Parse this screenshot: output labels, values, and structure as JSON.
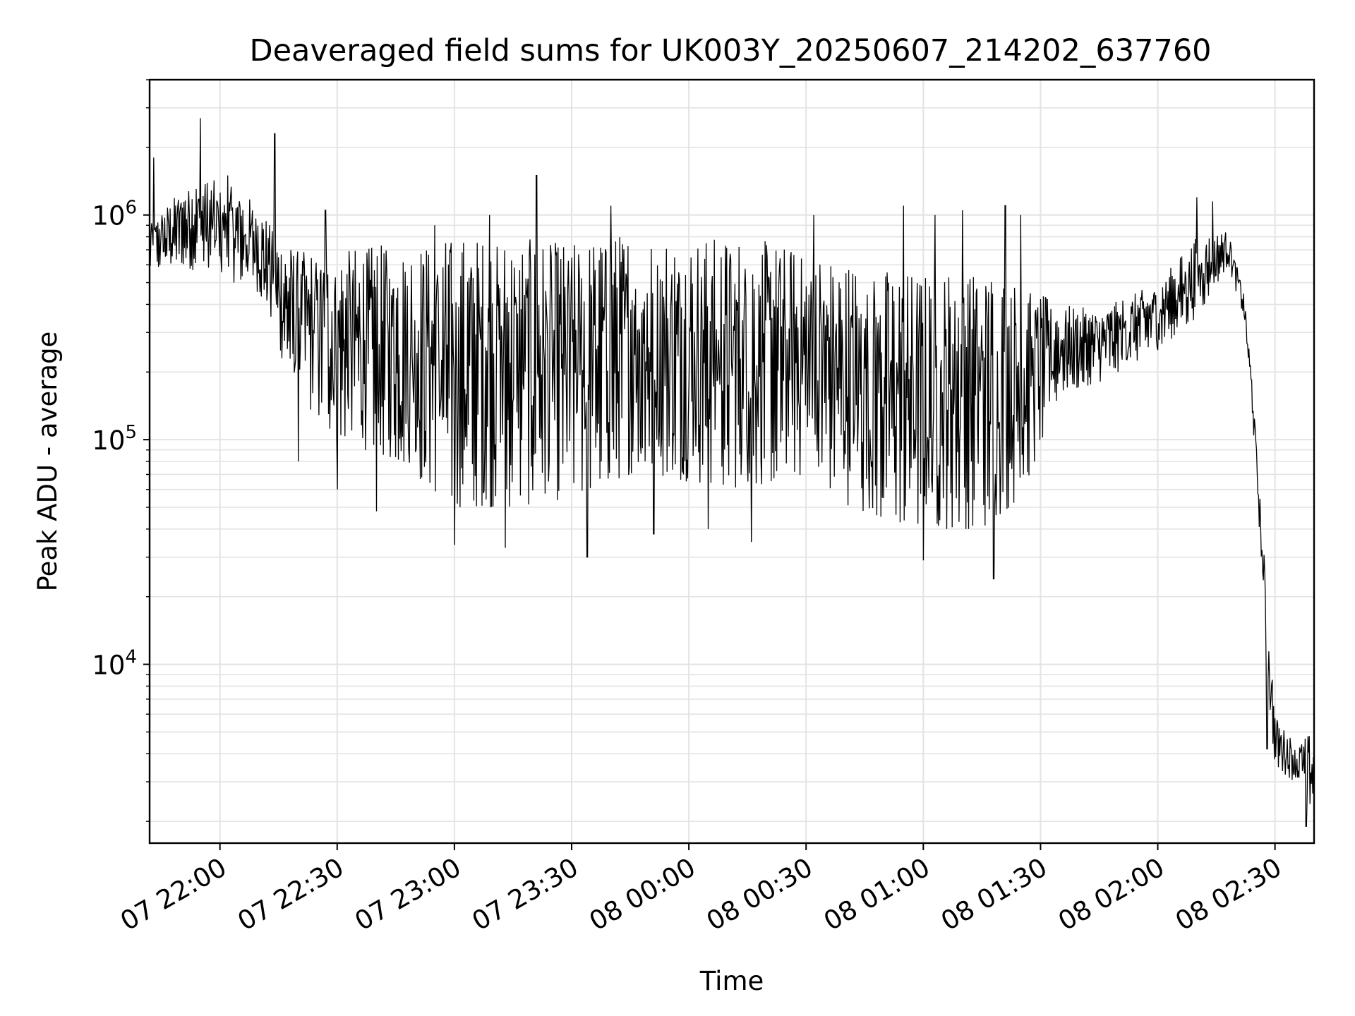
{
  "chart_data": {
    "type": "line",
    "title": "Deaveraged field sums for UK003Y_20250607_214202_637760",
    "xlabel": "Time",
    "ylabel": "Peak ADU - average",
    "yscale": "log",
    "grid": true,
    "line_color": "#000000",
    "grid_color": "#e3e3e3",
    "xlim": [
      "2025-06-07 21:42",
      "2025-06-08 02:40"
    ],
    "ylim": [
      1600,
      4000000
    ],
    "x_ticks": [
      {
        "value": "2025-06-07 22:00",
        "label": "07 22:00"
      },
      {
        "value": "2025-06-07 22:30",
        "label": "07 22:30"
      },
      {
        "value": "2025-06-07 23:00",
        "label": "07 23:00"
      },
      {
        "value": "2025-06-07 23:30",
        "label": "07 23:30"
      },
      {
        "value": "2025-06-08 00:00",
        "label": "08 00:00"
      },
      {
        "value": "2025-06-08 00:30",
        "label": "08 00:30"
      },
      {
        "value": "2025-06-08 01:00",
        "label": "08 01:00"
      },
      {
        "value": "2025-06-08 01:30",
        "label": "08 01:30"
      },
      {
        "value": "2025-06-08 02:00",
        "label": "08 02:00"
      },
      {
        "value": "2025-06-08 02:30",
        "label": "08 02:30"
      }
    ],
    "y_ticks": [
      {
        "value": 10000,
        "base": "10",
        "exp": "4"
      },
      {
        "value": 100000,
        "base": "10",
        "exp": "5"
      },
      {
        "value": 1000000,
        "base": "10",
        "exp": "6"
      }
    ],
    "series": [
      {
        "envelope_points": [
          {
            "x": "2025-06-07 21:42",
            "low": 550000,
            "high": 900000
          },
          {
            "x": "2025-06-07 21:50",
            "low": 600000,
            "high": 1300000
          },
          {
            "x": "2025-06-07 21:55",
            "low": 550000,
            "high": 1500000
          },
          {
            "x": "2025-06-07 22:00",
            "low": 500000,
            "high": 1400000
          },
          {
            "x": "2025-06-07 22:05",
            "low": 500000,
            "high": 1300000
          },
          {
            "x": "2025-06-07 22:10",
            "low": 450000,
            "high": 1100000
          },
          {
            "x": "2025-06-07 22:15",
            "low": 250000,
            "high": 800000
          },
          {
            "x": "2025-06-07 22:20",
            "low": 150000,
            "high": 700000
          },
          {
            "x": "2025-06-07 22:30",
            "low": 100000,
            "high": 700000
          },
          {
            "x": "2025-06-07 22:45",
            "low": 80000,
            "high": 750000
          },
          {
            "x": "2025-06-07 23:00",
            "low": 50000,
            "high": 800000
          },
          {
            "x": "2025-06-07 23:15",
            "low": 50000,
            "high": 800000
          },
          {
            "x": "2025-06-07 23:30",
            "low": 55000,
            "high": 750000
          },
          {
            "x": "2025-06-07 23:45",
            "low": 70000,
            "high": 850000
          },
          {
            "x": "2025-06-08 00:00",
            "low": 65000,
            "high": 800000
          },
          {
            "x": "2025-06-08 00:15",
            "low": 60000,
            "high": 800000
          },
          {
            "x": "2025-06-08 00:30",
            "low": 70000,
            "high": 700000
          },
          {
            "x": "2025-06-08 00:45",
            "low": 45000,
            "high": 600000
          },
          {
            "x": "2025-06-08 01:00",
            "low": 40000,
            "high": 550000
          },
          {
            "x": "2025-06-08 01:15",
            "low": 40000,
            "high": 600000
          },
          {
            "x": "2025-06-08 01:25",
            "low": 55000,
            "high": 500000
          },
          {
            "x": "2025-06-08 01:35",
            "low": 160000,
            "high": 400000
          },
          {
            "x": "2025-06-08 01:45",
            "low": 180000,
            "high": 380000
          },
          {
            "x": "2025-06-08 02:00",
            "low": 250000,
            "high": 500000
          },
          {
            "x": "2025-06-08 02:10",
            "low": 350000,
            "high": 800000
          },
          {
            "x": "2025-06-08 02:18",
            "low": 600000,
            "high": 850000
          },
          {
            "x": "2025-06-08 02:22",
            "low": 350000,
            "high": 450000
          },
          {
            "x": "2025-06-08 02:24",
            "low": 150000,
            "high": 200000
          },
          {
            "x": "2025-06-08 02:26",
            "low": 40000,
            "high": 60000
          },
          {
            "x": "2025-06-08 02:28",
            "low": 8000,
            "high": 20000
          },
          {
            "x": "2025-06-08 02:30",
            "low": 3500,
            "high": 6000
          },
          {
            "x": "2025-06-08 02:35",
            "low": 3000,
            "high": 4500
          },
          {
            "x": "2025-06-08 02:40",
            "low": 2200,
            "high": 5000
          }
        ],
        "spikes": [
          {
            "x": "2025-06-07 21:43",
            "y": 1800000
          },
          {
            "x": "2025-06-07 21:55",
            "y": 2700000
          },
          {
            "x": "2025-06-07 22:02",
            "y": 1500000
          },
          {
            "x": "2025-06-07 22:14",
            "y": 2300000
          },
          {
            "x": "2025-06-07 22:20",
            "y": 80000
          },
          {
            "x": "2025-06-07 22:27",
            "y": 1050000
          },
          {
            "x": "2025-06-07 22:30",
            "y": 60000
          },
          {
            "x": "2025-06-07 22:40",
            "y": 48000
          },
          {
            "x": "2025-06-07 22:55",
            "y": 900000
          },
          {
            "x": "2025-06-07 23:00",
            "y": 34000
          },
          {
            "x": "2025-06-07 23:09",
            "y": 1000000
          },
          {
            "x": "2025-06-07 23:13",
            "y": 33000
          },
          {
            "x": "2025-06-07 23:21",
            "y": 1500000
          },
          {
            "x": "2025-06-07 23:34",
            "y": 30000
          },
          {
            "x": "2025-06-07 23:40",
            "y": 1100000
          },
          {
            "x": "2025-06-07 23:51",
            "y": 38000
          },
          {
            "x": "2025-06-08 00:05",
            "y": 40000
          },
          {
            "x": "2025-06-08 00:16",
            "y": 35000
          },
          {
            "x": "2025-06-08 00:32",
            "y": 1000000
          },
          {
            "x": "2025-06-08 00:55",
            "y": 1100000
          },
          {
            "x": "2025-06-08 01:00",
            "y": 29000
          },
          {
            "x": "2025-06-08 01:03",
            "y": 1000000
          },
          {
            "x": "2025-06-08 01:10",
            "y": 1050000
          },
          {
            "x": "2025-06-08 01:18",
            "y": 24000
          },
          {
            "x": "2025-06-08 01:21",
            "y": 1100000
          },
          {
            "x": "2025-06-08 01:25",
            "y": 1000000
          },
          {
            "x": "2025-06-08 02:10",
            "y": 1200000
          },
          {
            "x": "2025-06-08 02:14",
            "y": 1150000
          },
          {
            "x": "2025-06-08 02:28",
            "y": 4200
          },
          {
            "x": "2025-06-08 02:38",
            "y": 1900
          }
        ]
      }
    ]
  }
}
